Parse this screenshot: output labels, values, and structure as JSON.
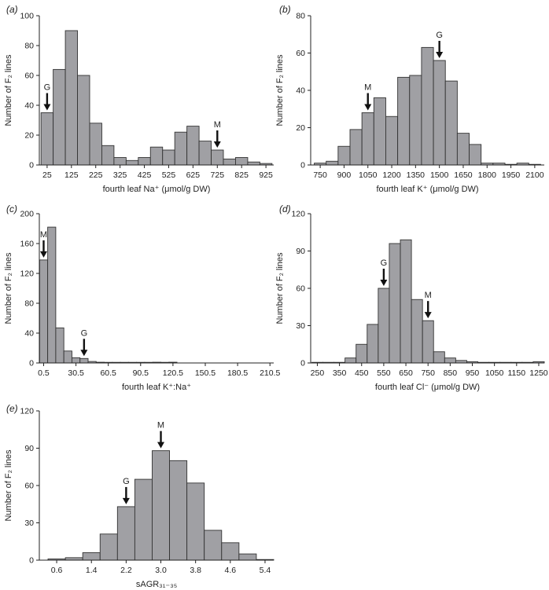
{
  "style": {
    "bar_fill": "#a0a0a4",
    "bar_stroke": "#333333",
    "axis_color": "#222222",
    "arrow_color": "#111111"
  },
  "chart_data": [
    {
      "panel": "(a)",
      "type": "bar",
      "xlabel": "fourth leaf Na⁺ (μmol/g DW)",
      "ylabel": "Number of F₂ lines",
      "bin_centers": [
        25,
        75,
        125,
        175,
        225,
        275,
        325,
        375,
        425,
        475,
        525,
        575,
        625,
        675,
        725,
        775,
        825,
        875,
        925
      ],
      "values": [
        35,
        64,
        90,
        60,
        28,
        13,
        5,
        3,
        5,
        12,
        10,
        22,
        26,
        16,
        10,
        4,
        5,
        2,
        1
      ],
      "xticks": [
        25,
        125,
        225,
        325,
        425,
        525,
        625,
        725,
        825,
        925
      ],
      "xtick_labels": [
        "25",
        "125",
        "225",
        "325",
        "425",
        "525",
        "625",
        "725",
        "825",
        "925"
      ],
      "xlim": [
        -7,
        957
      ],
      "ylim": [
        0,
        100
      ],
      "yticks": [
        0,
        20,
        40,
        60,
        80,
        100
      ],
      "markers": [
        {
          "label": "G",
          "x": 25,
          "bar_value": 35
        },
        {
          "label": "M",
          "x": 725,
          "bar_value": 10
        }
      ]
    },
    {
      "panel": "(b)",
      "type": "bar",
      "xlabel": "fourth leaf K⁺ (μmol/g DW)",
      "ylabel": "Number of F₂ lines",
      "bin_centers": [
        750,
        825,
        900,
        975,
        1050,
        1125,
        1200,
        1275,
        1350,
        1425,
        1500,
        1575,
        1650,
        1725,
        1800,
        1875,
        1950,
        2025,
        2100
      ],
      "values": [
        1,
        2,
        10,
        19,
        28,
        36,
        26,
        47,
        48,
        63,
        56,
        45,
        17,
        11,
        1,
        1,
        0,
        1,
        0
      ],
      "xticks": [
        750,
        900,
        1050,
        1200,
        1350,
        1500,
        1650,
        1800,
        1950,
        2100
      ],
      "xtick_labels": [
        "750",
        "900",
        "1050",
        "1200",
        "1350",
        "1500",
        "1650",
        "1800",
        "1950",
        "2100"
      ],
      "xlim": [
        690,
        2160
      ],
      "ylim": [
        0,
        80
      ],
      "yticks": [
        0,
        20,
        40,
        60,
        80
      ],
      "markers": [
        {
          "label": "M",
          "x": 1050,
          "bar_value": 28
        },
        {
          "label": "G",
          "x": 1500,
          "bar_value": 56
        }
      ]
    },
    {
      "panel": "(c)",
      "type": "bar",
      "xlabel": "fourth leaf K⁺:Na⁺",
      "ylabel": "Number of F₂ lines",
      "bin_centers": [
        0.5,
        8,
        15.5,
        23,
        30.5,
        38,
        45.5,
        53,
        60.5,
        68,
        75.5,
        83,
        90.5,
        98,
        105.5,
        113,
        120.5
      ],
      "values": [
        138,
        182,
        47,
        16,
        7,
        6,
        2,
        1,
        0,
        0,
        0,
        0,
        0,
        0,
        1,
        0,
        1
      ],
      "xticks": [
        0.5,
        30.5,
        60.5,
        90.5,
        120.5,
        150.5,
        180.5,
        210.5
      ],
      "xtick_labels": [
        "0.5",
        "30.5",
        "60.5",
        "90.5",
        "120.5",
        "150.5",
        "180.5",
        "210.5"
      ],
      "xlim": [
        -3.5,
        214
      ],
      "ylim": [
        0,
        200
      ],
      "yticks": [
        0,
        40,
        80,
        120,
        160,
        200
      ],
      "markers": [
        {
          "label": "M",
          "x": 0.5,
          "bar_value": 138
        },
        {
          "label": "G",
          "x": 38,
          "bar_value": 6
        }
      ]
    },
    {
      "panel": "(d)",
      "type": "bar",
      "xlabel": "fourth leaf Cl⁻ (μmol/g DW)",
      "ylabel": "Number of F₂ lines",
      "bin_centers": [
        250,
        300,
        350,
        400,
        450,
        500,
        550,
        600,
        650,
        700,
        750,
        800,
        850,
        900,
        950,
        1000,
        1050,
        1100,
        1150,
        1200,
        1250
      ],
      "values": [
        0,
        0,
        0,
        4,
        15,
        31,
        60,
        96,
        99,
        51,
        34,
        9,
        4,
        2,
        1,
        0,
        0,
        0,
        0,
        0,
        1
      ],
      "xticks": [
        250,
        350,
        450,
        550,
        650,
        750,
        850,
        950,
        1050,
        1150,
        1250
      ],
      "xtick_labels": [
        "250",
        "350",
        "450",
        "550",
        "650",
        "750",
        "850",
        "950",
        "1050",
        "1150",
        "1250"
      ],
      "xlim": [
        220,
        1275
      ],
      "ylim": [
        0,
        120
      ],
      "yticks": [
        0,
        30,
        60,
        90,
        120
      ],
      "markers": [
        {
          "label": "G",
          "x": 550,
          "bar_value": 60
        },
        {
          "label": "M",
          "x": 750,
          "bar_value": 34
        }
      ]
    },
    {
      "panel": "(e)",
      "type": "bar",
      "xlabel": "sAGR₃₁₋₃₅",
      "ylabel": "Number of F₂ lines",
      "bin_centers": [
        0.6,
        1.0,
        1.4,
        1.8,
        2.2,
        2.6,
        3.0,
        3.4,
        3.8,
        4.2,
        4.6,
        5.0,
        5.4
      ],
      "values": [
        1,
        2,
        6,
        21,
        43,
        65,
        88,
        80,
        62,
        24,
        14,
        5,
        0
      ],
      "xticks": [
        0.6,
        1.4,
        2.2,
        3.0,
        3.8,
        4.6,
        5.4
      ],
      "xtick_labels": [
        "0.6",
        "1.4",
        "2.2",
        "3.0",
        "3.8",
        "4.6",
        "5.4"
      ],
      "xlim": [
        0.2,
        5.6
      ],
      "ylim": [
        0,
        120
      ],
      "yticks": [
        0,
        30,
        60,
        90,
        120
      ],
      "markers": [
        {
          "label": "G",
          "x": 2.2,
          "bar_value": 43
        },
        {
          "label": "M",
          "x": 3.0,
          "bar_value": 88
        }
      ]
    }
  ]
}
